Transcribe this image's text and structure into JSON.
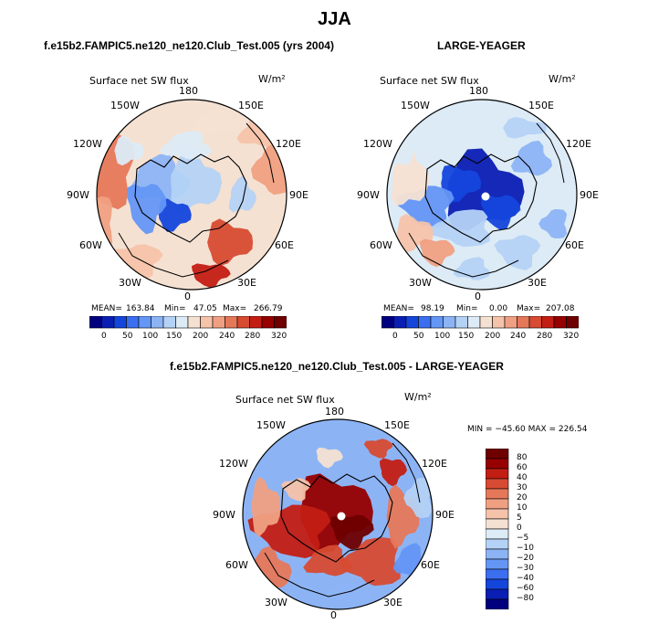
{
  "main_title": "JJA",
  "panels": [
    {
      "title": "f.e15b2.FAMPIC5.ne120_ne120.Club_Test.005 (yrs 2004)",
      "var_label": "Surface net SW flux",
      "units": "W/m²",
      "lon_labels": [
        "180",
        "150E",
        "120E",
        "90E",
        "60E",
        "30E",
        "0",
        "30W",
        "60W",
        "90W",
        "120W",
        "150W"
      ],
      "stats": {
        "mean_label": "MEAN=",
        "mean": "163.84",
        "min_label": "Min=",
        "min": "47.05",
        "max_label": "Max=",
        "max": "266.79"
      },
      "colorbar_ticks": [
        "0",
        "50",
        "100",
        "150",
        "200",
        "240",
        "280",
        "320"
      ]
    },
    {
      "title": "LARGE-YEAGER",
      "var_label": "Surface net SW flux",
      "units": "W/m²",
      "lon_labels": [
        "180",
        "150E",
        "120E",
        "90E",
        "60E",
        "30E",
        "0",
        "30W",
        "60W",
        "90W",
        "120W",
        "150W"
      ],
      "stats": {
        "mean_label": "MEAN=",
        "mean": "98.19",
        "min_label": "Min=",
        "min": "0.00",
        "max_label": "Max=",
        "max": "207.08"
      },
      "colorbar_ticks": [
        "0",
        "50",
        "100",
        "150",
        "200",
        "240",
        "280",
        "320"
      ]
    },
    {
      "title": "f.e15b2.FAMPIC5.ne120_ne120.Club_Test.005 - LARGE-YEAGER",
      "var_label": "Surface net SW flux",
      "units": "W/m²",
      "lon_labels": [
        "180",
        "150E",
        "120E",
        "90E",
        "60E",
        "30E",
        "0",
        "30W",
        "60W",
        "90W",
        "120W",
        "150W"
      ],
      "minmax": "MIN = −45.60  MAX = 226.54",
      "colorbar_ticks": [
        "80",
        "60",
        "40",
        "30",
        "20",
        "10",
        "5",
        "0",
        "−5",
        "−10",
        "−20",
        "−30",
        "−40",
        "−60",
        "−80"
      ]
    }
  ],
  "chart_data": [
    {
      "type": "heatmap",
      "projection": "north-polar-stereographic",
      "title": "f.e15b2.FAMPIC5.ne120_ne120.Club_Test.005 (yrs 2004)",
      "variable": "Surface net SW flux",
      "units": "W/m^2",
      "mean": 163.84,
      "min": 47.05,
      "max": 266.79,
      "levels": [
        0,
        25,
        50,
        75,
        100,
        125,
        150,
        175,
        200,
        220,
        240,
        260,
        280,
        300,
        320
      ],
      "colors": [
        "#00007f",
        "#0a1eb4",
        "#1446dc",
        "#3c6ef0",
        "#6496f5",
        "#8cb4f5",
        "#b4d2f5",
        "#dcebf5",
        "#f5e1d2",
        "#f5c3aa",
        "#f0a082",
        "#e6785a",
        "#d74b32",
        "#c31e14",
        "#960000",
        "#6e0000"
      ]
    },
    {
      "type": "heatmap",
      "projection": "north-polar-stereographic",
      "title": "LARGE-YEAGER",
      "variable": "Surface net SW flux",
      "units": "W/m^2",
      "mean": 98.19,
      "min": 0.0,
      "max": 207.08,
      "levels": [
        0,
        25,
        50,
        75,
        100,
        125,
        150,
        175,
        200,
        220,
        240,
        260,
        280,
        300,
        320
      ],
      "colors": [
        "#00007f",
        "#0a1eb4",
        "#1446dc",
        "#3c6ef0",
        "#6496f5",
        "#8cb4f5",
        "#b4d2f5",
        "#dcebf5",
        "#f5e1d2",
        "#f5c3aa",
        "#f0a082",
        "#e6785a",
        "#d74b32",
        "#c31e14",
        "#960000",
        "#6e0000"
      ]
    },
    {
      "type": "heatmap",
      "projection": "north-polar-stereographic",
      "title": "f.e15b2.FAMPIC5.ne120_ne120.Club_Test.005 - LARGE-YEAGER",
      "variable": "Surface net SW flux",
      "units": "W/m^2",
      "min": -45.6,
      "max": 226.54,
      "levels": [
        -80,
        -60,
        -40,
        -30,
        -20,
        -10,
        -5,
        0,
        5,
        10,
        20,
        30,
        40,
        60,
        80
      ],
      "colors": [
        "#00007f",
        "#0a1eb4",
        "#1446dc",
        "#3c6ef0",
        "#6496f5",
        "#8cb4f5",
        "#b4d2f5",
        "#dcebf5",
        "#f5e1d2",
        "#f5c3aa",
        "#f0a082",
        "#e6785a",
        "#d74b32",
        "#c31e14",
        "#960000",
        "#6e0000"
      ]
    }
  ]
}
